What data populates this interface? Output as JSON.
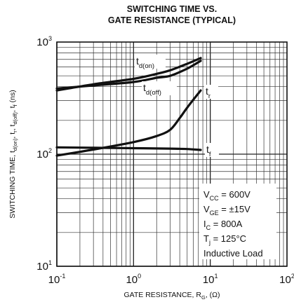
{
  "chart_data": {
    "type": "line",
    "title": "SWITCHING TIME VS.",
    "subtitle": "GATE RESISTANCE (TYPICAL)",
    "xlabel": {
      "main": "GATE RESISTANCE, R",
      "sub": "G",
      "tail": ", (Ω)"
    },
    "ylabel": {
      "parts": [
        {
          "t": "SWITCHING TIME, t",
          "sub": false
        },
        {
          "t": "d(on)",
          "sub": true
        },
        {
          "t": ", t",
          "sub": false
        },
        {
          "t": "r",
          "sub": true
        },
        {
          "t": ", t",
          "sub": false
        },
        {
          "t": "d(off)",
          "sub": true
        },
        {
          "t": ", t",
          "sub": false
        },
        {
          "t": "f",
          "sub": true
        },
        {
          "t": " (ns)",
          "sub": false
        }
      ]
    },
    "xscale": "log",
    "yscale": "log",
    "xlim": [
      0.1,
      100
    ],
    "ylim": [
      10,
      1000
    ],
    "grid": true,
    "x_ticks": [
      {
        "base": "10",
        "exp": "-1"
      },
      {
        "base": "10",
        "exp": "0"
      },
      {
        "base": "10",
        "exp": "1"
      },
      {
        "base": "10",
        "exp": "2"
      }
    ],
    "y_ticks": [
      {
        "base": "10",
        "exp": "1"
      },
      {
        "base": "10",
        "exp": "2"
      },
      {
        "base": "10",
        "exp": "3"
      }
    ],
    "series": [
      {
        "name": "d(on)",
        "label_main": "t",
        "label_sub": "d(on)",
        "x": [
          0.1,
          0.3,
          1,
          2,
          3,
          5,
          7.5
        ],
        "y": [
          370,
          420,
          470,
          520,
          560,
          640,
          720
        ]
      },
      {
        "name": "d(off)",
        "label_main": "t",
        "label_sub": "d(off)",
        "x": [
          0.1,
          0.3,
          1,
          2,
          3,
          5,
          7.5
        ],
        "y": [
          385,
          410,
          440,
          480,
          500,
          580,
          680
        ]
      },
      {
        "name": "r",
        "label_main": "t",
        "label_sub": "r",
        "x": [
          0.1,
          0.3,
          1,
          2,
          3,
          4,
          5,
          7.5
        ],
        "y": [
          97,
          110,
          128,
          145,
          165,
          210,
          260,
          370
        ]
      },
      {
        "name": "f",
        "label_main": "t",
        "label_sub": "f",
        "x": [
          0.1,
          0.3,
          1,
          3,
          5,
          7.5
        ],
        "y": [
          115,
          114,
          113,
          112,
          111,
          109
        ]
      }
    ],
    "conditions": [
      {
        "main": "V",
        "sub": "CC",
        "tail": " = 600V"
      },
      {
        "main": "V",
        "sub": "GE",
        "tail": " = ±15V"
      },
      {
        "main": "I",
        "sub": "C",
        "tail": " = 800A"
      },
      {
        "main": "T",
        "sub": "j",
        "tail": " = 125°C"
      },
      {
        "main": "Inductive Load",
        "sub": "",
        "tail": ""
      }
    ]
  }
}
